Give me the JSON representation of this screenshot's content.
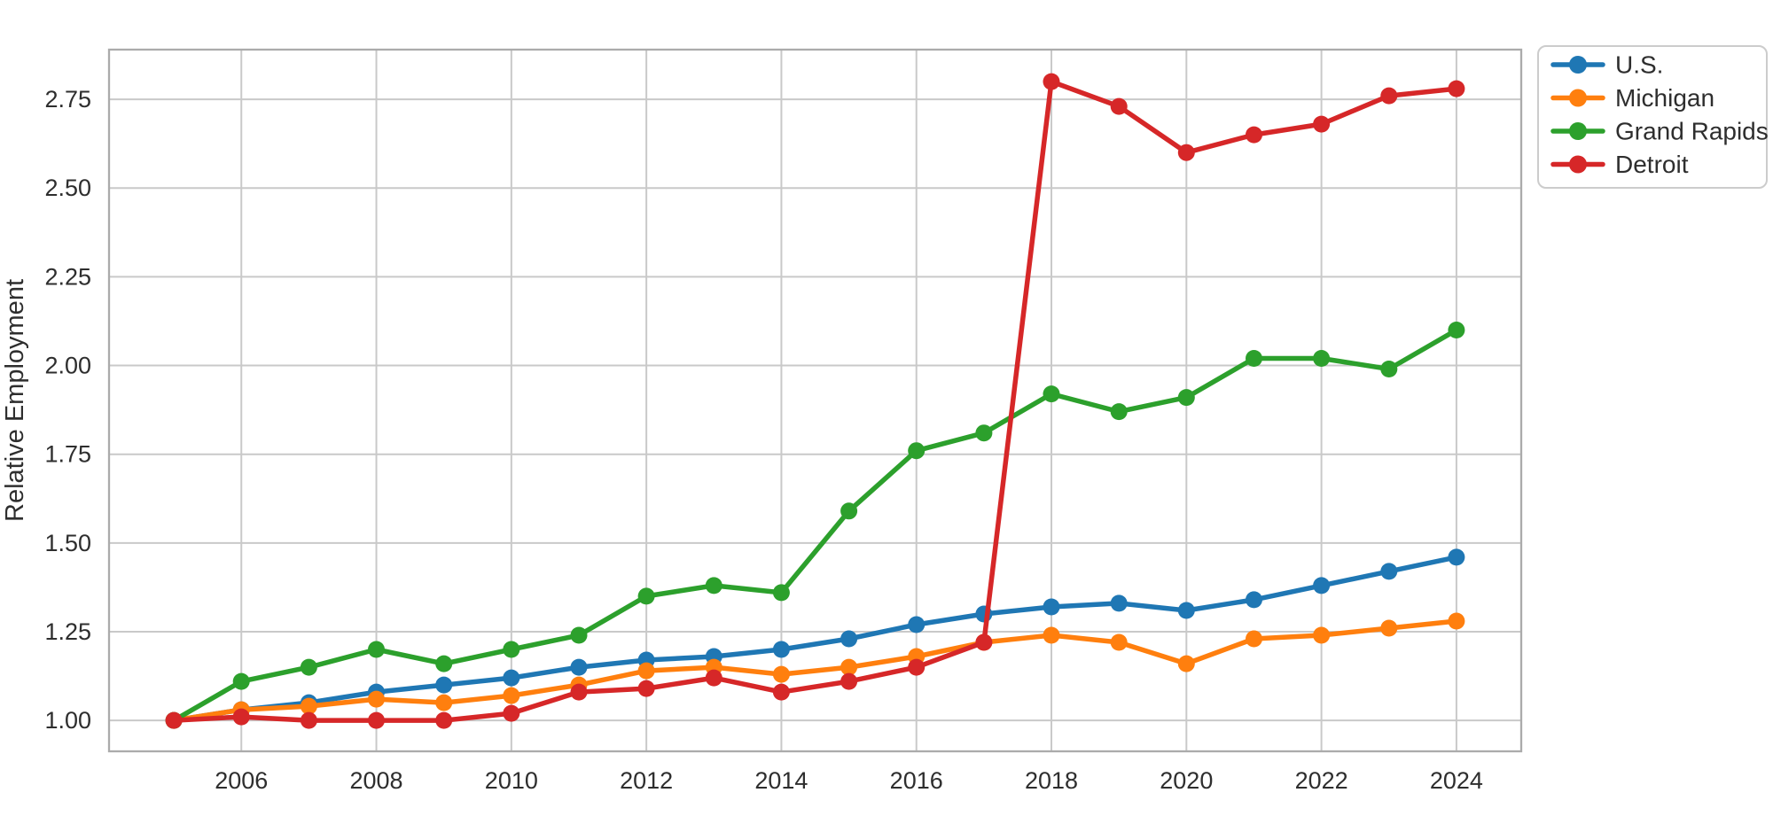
{
  "chart_data": {
    "type": "line",
    "title": "",
    "xlabel": "",
    "ylabel": "Relative Employment",
    "x": [
      2005,
      2006,
      2007,
      2008,
      2009,
      2010,
      2011,
      2012,
      2013,
      2014,
      2015,
      2016,
      2017,
      2018,
      2019,
      2020,
      2021,
      2022,
      2023,
      2024
    ],
    "series": [
      {
        "name": "U.S.",
        "color": "#1f77b4",
        "values": [
          1.0,
          1.03,
          1.05,
          1.08,
          1.1,
          1.12,
          1.15,
          1.17,
          1.18,
          1.2,
          1.23,
          1.27,
          1.3,
          1.32,
          1.33,
          1.31,
          1.34,
          1.38,
          1.42,
          1.46
        ]
      },
      {
        "name": "Michigan",
        "color": "#ff7f0e",
        "values": [
          1.0,
          1.03,
          1.04,
          1.06,
          1.05,
          1.07,
          1.1,
          1.14,
          1.15,
          1.13,
          1.15,
          1.18,
          1.22,
          1.24,
          1.22,
          1.16,
          1.23,
          1.24,
          1.26,
          1.28
        ]
      },
      {
        "name": "Grand Rapids",
        "color": "#2ca02c",
        "values": [
          1.0,
          1.11,
          1.15,
          1.2,
          1.16,
          1.2,
          1.24,
          1.35,
          1.38,
          1.36,
          1.59,
          1.76,
          1.81,
          1.92,
          1.87,
          1.91,
          2.02,
          2.02,
          1.99,
          2.1
        ]
      },
      {
        "name": "Detroit",
        "color": "#d62728",
        "values": [
          1.0,
          1.01,
          1.0,
          1.0,
          1.0,
          1.02,
          1.08,
          1.09,
          1.12,
          1.08,
          1.11,
          1.15,
          1.22,
          2.8,
          2.73,
          2.6,
          2.65,
          2.68,
          2.76,
          2.78
        ]
      }
    ],
    "xticks": [
      2006,
      2008,
      2010,
      2012,
      2014,
      2016,
      2018,
      2020,
      2022,
      2024
    ],
    "yticks": [
      1.0,
      1.25,
      1.5,
      1.75,
      2.0,
      2.25,
      2.5,
      2.75
    ],
    "ytick_labels": [
      "1.00",
      "1.25",
      "1.50",
      "1.75",
      "2.00",
      "2.25",
      "2.50",
      "2.75"
    ],
    "xlim": [
      2004.04,
      2024.96
    ],
    "ylim": [
      0.913,
      2.89
    ],
    "grid": true,
    "legend": {
      "position": "top-right-outside",
      "entries": [
        "U.S.",
        "Michigan",
        "Grand Rapids",
        "Detroit"
      ]
    },
    "colors": {
      "grid": "#c9c9c9",
      "spine": "#ababab",
      "text": "#2e2e2e",
      "legend_border": "#cccccc",
      "background": "#ffffff"
    }
  }
}
